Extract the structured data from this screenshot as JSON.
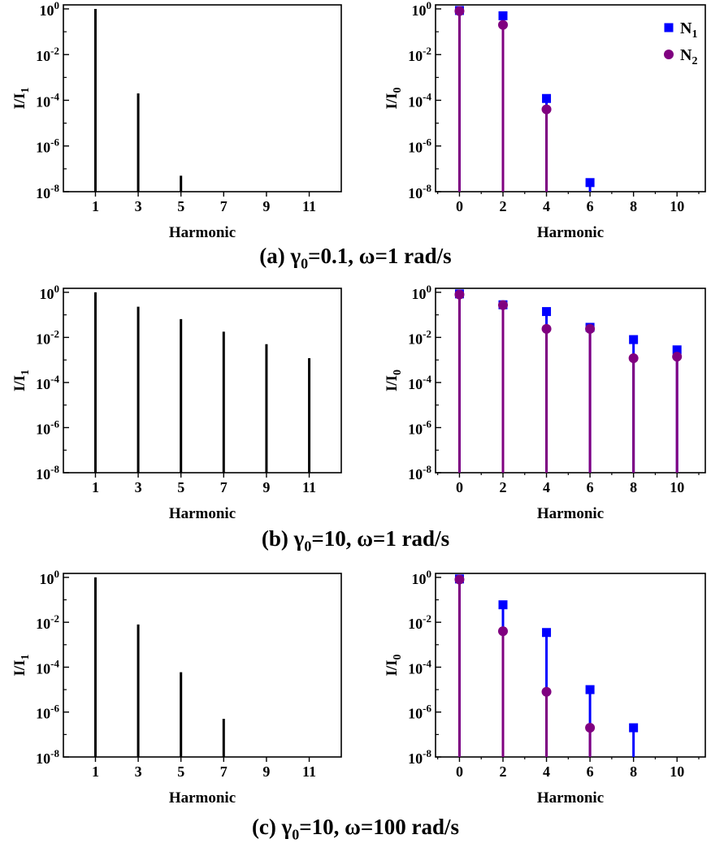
{
  "figure": {
    "captions": [
      {
        "panel": "(a)",
        "gamma_symbol": "γ",
        "gamma_sub": "0",
        "rest": "=0.1, ω=1 rad/s"
      },
      {
        "panel": "(b)",
        "gamma_symbol": "γ",
        "gamma_sub": "0",
        "rest": "=10, ω=1 rad/s"
      },
      {
        "panel": "(c)",
        "gamma_symbol": "γ",
        "gamma_sub": "0",
        "rest": "=10, ω=100 rad/s"
      }
    ]
  },
  "chart_data": [
    {
      "type": "bar",
      "id": "a-left",
      "xlabel": "Harmonic",
      "ylabel_main": "I/I",
      "ylabel_sub": "1",
      "yscale": "log",
      "ylim": [
        1e-08,
        1.5
      ],
      "xlim": [
        -0.5,
        12.5
      ],
      "xticks": [
        1,
        3,
        5,
        7,
        9,
        11
      ],
      "yticks": [
        1,
        0.01,
        0.0001,
        1e-06,
        1e-08
      ],
      "x": [
        1,
        3,
        5,
        7,
        9,
        11
      ],
      "values": [
        1,
        0.0002,
        5e-08,
        null,
        null,
        null
      ],
      "color": "#000000"
    },
    {
      "type": "scatter",
      "id": "a-right",
      "xlabel": "Harmonic",
      "ylabel_main": "I/I",
      "ylabel_sub": "0",
      "yscale": "log",
      "ylim": [
        1e-08,
        1.5
      ],
      "xlim": [
        -1.1,
        11.3
      ],
      "xticks": [
        0,
        2,
        4,
        6,
        8,
        10
      ],
      "yticks": [
        1,
        0.01,
        0.0001,
        1e-06,
        1e-08
      ],
      "legend": {
        "placement": "top-right",
        "entries": [
          {
            "main": "N",
            "sub": "1"
          },
          {
            "main": "N",
            "sub": "2"
          }
        ]
      },
      "series": [
        {
          "name": "N1",
          "marker": "square",
          "color": "#0000ff",
          "x": [
            0,
            2,
            4,
            6,
            8,
            10
          ],
          "values": [
            0.85,
            0.5,
            0.00012,
            2.5e-08,
            null,
            null
          ]
        },
        {
          "name": "N2",
          "marker": "circle",
          "color": "#800080",
          "x": [
            0,
            2,
            4,
            6,
            8,
            10
          ],
          "values": [
            0.8,
            0.2,
            4e-05,
            null,
            null,
            null
          ]
        }
      ]
    },
    {
      "type": "bar",
      "id": "b-left",
      "xlabel": "Harmonic",
      "ylabel_main": "I/I",
      "ylabel_sub": "1",
      "yscale": "log",
      "ylim": [
        1e-08,
        1.5
      ],
      "xlim": [
        -0.5,
        12.5
      ],
      "xticks": [
        1,
        3,
        5,
        7,
        9,
        11
      ],
      "yticks": [
        1,
        0.01,
        0.0001,
        1e-06,
        1e-08
      ],
      "x": [
        1,
        3,
        5,
        7,
        9,
        11
      ],
      "values": [
        1,
        0.23,
        0.065,
        0.018,
        0.005,
        0.0012
      ],
      "color": "#000000"
    },
    {
      "type": "scatter",
      "id": "b-right",
      "xlabel": "Harmonic",
      "ylabel_main": "I/I",
      "ylabel_sub": "0",
      "yscale": "log",
      "ylim": [
        1e-08,
        1.5
      ],
      "xlim": [
        -1.1,
        11.3
      ],
      "xticks": [
        0,
        2,
        4,
        6,
        8,
        10
      ],
      "yticks": [
        1,
        0.01,
        0.0001,
        1e-06,
        1e-08
      ],
      "series": [
        {
          "name": "N1",
          "marker": "square",
          "color": "#0000ff",
          "x": [
            0,
            2,
            4,
            6,
            8,
            10
          ],
          "values": [
            0.85,
            0.28,
            0.14,
            0.028,
            0.008,
            0.0028
          ]
        },
        {
          "name": "N2",
          "marker": "circle",
          "color": "#800080",
          "x": [
            0,
            2,
            4,
            6,
            8,
            10
          ],
          "values": [
            0.8,
            0.27,
            0.024,
            0.024,
            0.0012,
            0.0014
          ]
        }
      ]
    },
    {
      "type": "bar",
      "id": "c-left",
      "xlabel": "Harmonic",
      "ylabel_main": "I/I",
      "ylabel_sub": "1",
      "yscale": "log",
      "ylim": [
        1e-08,
        1.5
      ],
      "xlim": [
        -0.5,
        12.5
      ],
      "xticks": [
        1,
        3,
        5,
        7,
        9,
        11
      ],
      "yticks": [
        1,
        0.01,
        0.0001,
        1e-06,
        1e-08
      ],
      "x": [
        1,
        3,
        5,
        7,
        9,
        11
      ],
      "values": [
        1,
        0.008,
        6e-05,
        5e-07,
        null,
        null
      ],
      "color": "#000000"
    },
    {
      "type": "scatter",
      "id": "c-right",
      "xlabel": "Harmonic",
      "ylabel_main": "I/I",
      "ylabel_sub": "0",
      "yscale": "log",
      "ylim": [
        1e-08,
        1.5
      ],
      "xlim": [
        -1.1,
        11.3
      ],
      "xticks": [
        0,
        2,
        4,
        6,
        8,
        10
      ],
      "yticks": [
        1,
        0.01,
        0.0001,
        1e-06,
        1e-08
      ],
      "series": [
        {
          "name": "N1",
          "marker": "square",
          "color": "#0000ff",
          "x": [
            0,
            2,
            4,
            6,
            8,
            10
          ],
          "values": [
            0.85,
            0.06,
            0.0035,
            1e-05,
            2e-07,
            null
          ]
        },
        {
          "name": "N2",
          "marker": "circle",
          "color": "#800080",
          "x": [
            0,
            2,
            4,
            6,
            8,
            10
          ],
          "values": [
            0.8,
            0.004,
            8e-06,
            2e-07,
            null,
            null
          ]
        }
      ]
    }
  ]
}
